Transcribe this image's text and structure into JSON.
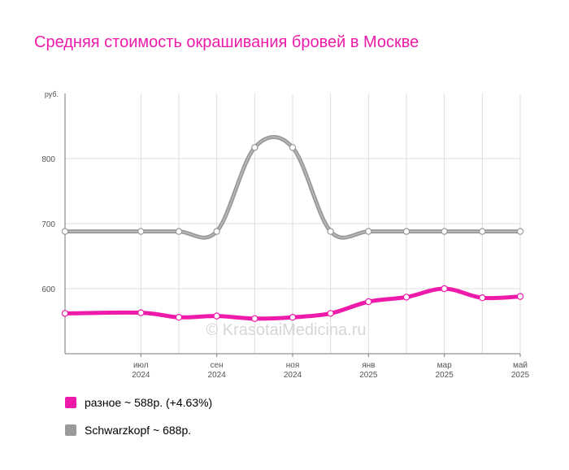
{
  "title": "Средняя стоимость окрашивания бровей в Москве",
  "watermark": "© KrasotaiMedicina.ru",
  "chart_data": {
    "type": "line",
    "ylabel": "руб.",
    "ylim": [
      500,
      900
    ],
    "yticks": [
      600,
      700,
      800
    ],
    "grid": true,
    "x": [
      "2024-05",
      "2024-07",
      "2024-08",
      "2024-09",
      "2024-10",
      "2024-11",
      "2024-12",
      "2025-01",
      "2025-02",
      "2025-03",
      "2025-04",
      "2025-05"
    ],
    "x_tick_labels": [
      {
        "month": "июл",
        "year": "2024"
      },
      {
        "month": "сен",
        "year": "2024"
      },
      {
        "month": "ноя",
        "year": "2024"
      },
      {
        "month": "янв",
        "year": "2025"
      },
      {
        "month": "мар",
        "year": "2025"
      },
      {
        "month": "май",
        "year": "2025"
      }
    ],
    "series": [
      {
        "name": "Schwarzkopf",
        "color": "#9a9a9a",
        "values": [
          688,
          688,
          688,
          688,
          817,
          817,
          688,
          688,
          688,
          688,
          688,
          688
        ]
      },
      {
        "name": "разное",
        "color": "#ee1aa9",
        "values": [
          562,
          563,
          556,
          558,
          554,
          556,
          562,
          580,
          587,
          600,
          586,
          588
        ]
      }
    ]
  },
  "legend": [
    {
      "label": "разное ~ 588р. (+4.63%)",
      "color": "#ee1aa9"
    },
    {
      "label": "Schwarzkopf ~ 688р.",
      "color": "#9a9a9a"
    }
  ]
}
